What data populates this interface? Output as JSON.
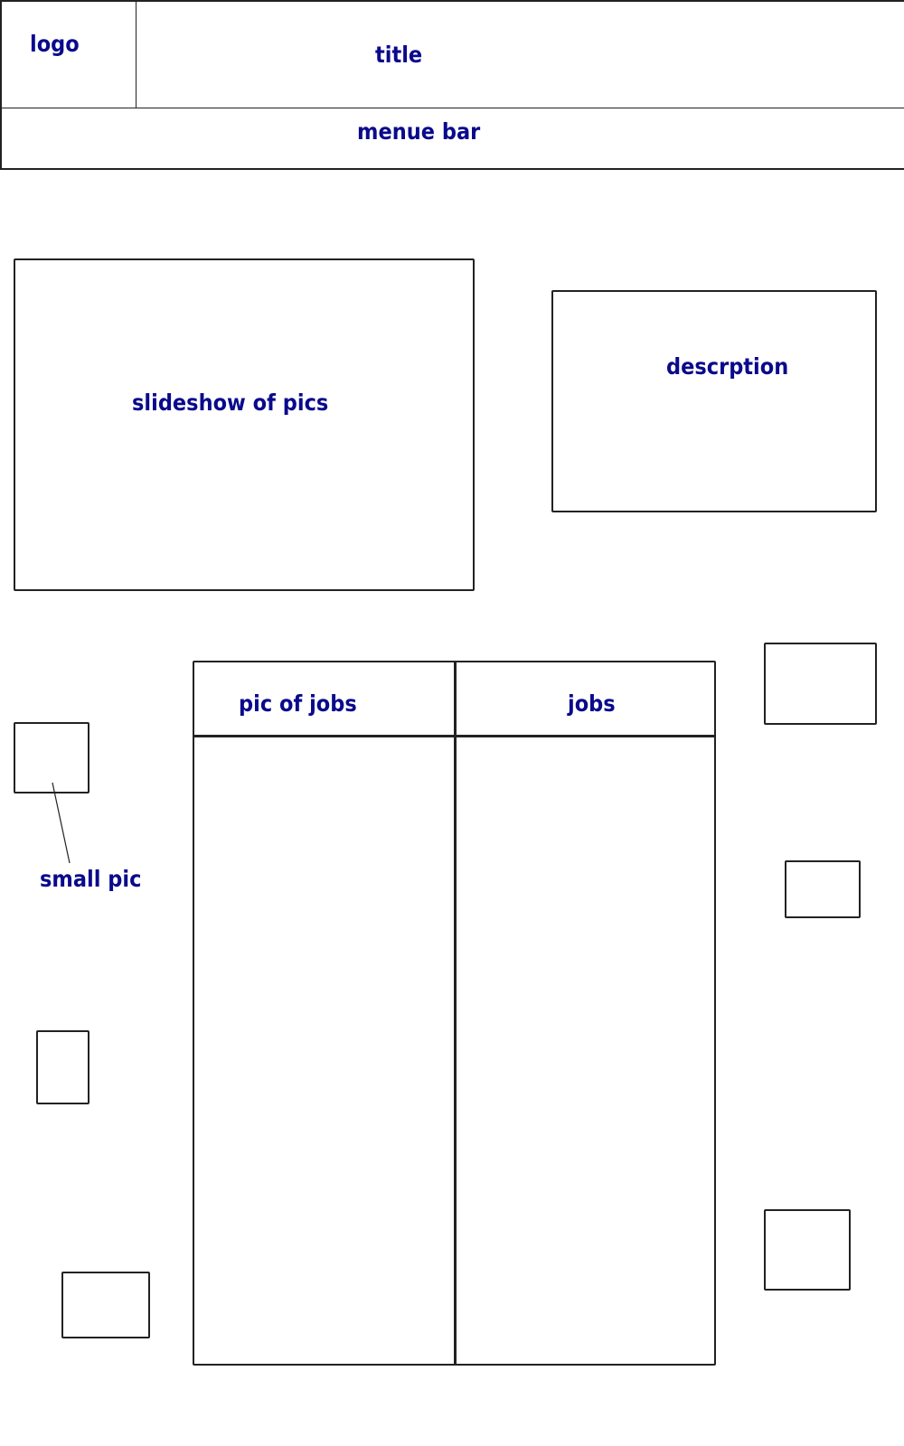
{
  "header": {
    "logo_label": "logo",
    "title_label": "title"
  },
  "menu": {
    "label": "menue bar"
  },
  "slideshow": {
    "label": "slideshow of pics"
  },
  "description": {
    "label": "descrption"
  },
  "jobs_table": {
    "col1_header": "pic of jobs",
    "col2_header": "jobs"
  },
  "small_pics": {
    "label": "small pic"
  },
  "colors": {
    "label_text": "#0a0a8c",
    "stroke": "#222222",
    "background": "#ffffff"
  }
}
